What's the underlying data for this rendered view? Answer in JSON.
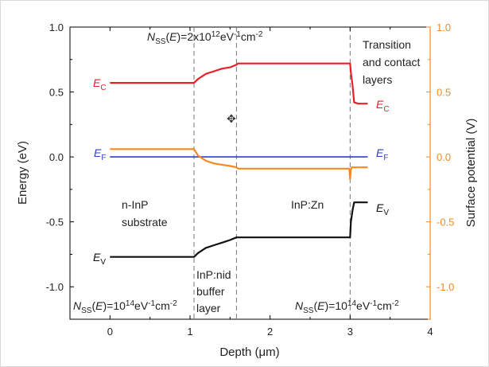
{
  "colors": {
    "conduction": "#e8202a",
    "fermi": "#2b3fd6",
    "valence": "#111111",
    "surface_potential": "#f7891f",
    "boundary": "#777777"
  },
  "chart_data": {
    "type": "line",
    "xlabel": "Depth (μm)",
    "ylabel_left": "Energy (eV)",
    "ylabel_right": "Surface potential (V)",
    "xlim": [
      -0.5,
      4.0
    ],
    "ylim_left": [
      -1.25,
      1.0
    ],
    "ylim_right": [
      -1.25,
      1.0
    ],
    "x_ticks": [
      "0",
      "1",
      "2",
      "3",
      "4"
    ],
    "y_left_ticks": [
      "1.0",
      "0.5",
      "0.0",
      "-0.5",
      "-1.0"
    ],
    "y_right_ticks": [
      "1.0",
      "0.5",
      "0.0",
      "-0.5",
      "-1.0"
    ],
    "boundaries": [
      1.05,
      1.58,
      3.0
    ],
    "grid": false,
    "series": [
      {
        "key": "Ec",
        "axis": "left",
        "x": [
          0,
          1.05,
          1.1,
          1.2,
          1.3,
          1.4,
          1.5,
          1.58,
          1.6,
          2.0,
          2.5,
          3.0,
          3.01,
          3.03,
          3.05,
          3.1,
          3.2,
          3.22
        ],
        "y": [
          0.57,
          0.57,
          0.6,
          0.64,
          0.66,
          0.68,
          0.69,
          0.71,
          0.72,
          0.72,
          0.72,
          0.72,
          0.65,
          0.55,
          0.42,
          0.41,
          0.41,
          0.41
        ]
      },
      {
        "key": "EF",
        "axis": "left",
        "x": [
          0,
          3.22
        ],
        "y": [
          0.0,
          0.0
        ]
      },
      {
        "key": "Ev",
        "axis": "left",
        "x": [
          0,
          1.05,
          1.1,
          1.2,
          1.3,
          1.4,
          1.5,
          1.58,
          1.6,
          2.0,
          2.5,
          3.0,
          3.01,
          3.03,
          3.05,
          3.1,
          3.2,
          3.22
        ],
        "y": [
          -0.77,
          -0.77,
          -0.74,
          -0.7,
          -0.68,
          -0.66,
          -0.64,
          -0.62,
          -0.62,
          -0.62,
          -0.62,
          -0.62,
          -0.5,
          -0.41,
          -0.35,
          -0.35,
          -0.35,
          -0.35
        ]
      },
      {
        "key": "surface_potential",
        "axis": "right",
        "x": [
          0,
          1.05,
          1.1,
          1.2,
          1.3,
          1.4,
          1.5,
          1.58,
          1.6,
          2.0,
          2.5,
          2.99,
          3.0,
          3.01,
          3.02,
          3.05,
          3.1,
          3.2,
          3.22
        ],
        "y": [
          0.06,
          0.06,
          0.01,
          -0.03,
          -0.05,
          -0.06,
          -0.07,
          -0.08,
          -0.09,
          -0.09,
          -0.09,
          -0.09,
          -0.17,
          -0.1,
          -0.08,
          -0.08,
          -0.08,
          -0.08,
          -0.08
        ]
      }
    ],
    "annotations": {
      "nss_top": "N_SS(E)=2x10^12 eV^-1cm^-2",
      "nss_left": "N_SS(E)=10^14 eV^-1cm^-2",
      "nss_right": "N_SS(E)=10^14 eV^-1cm^-2",
      "region_substrate": [
        "n-InP",
        "substrate"
      ],
      "region_buffer": [
        "InP:nid",
        "buffer",
        "layer"
      ],
      "region_znlayer": "InP:Zn",
      "region_contact": [
        "Transition",
        "and contact",
        "layers"
      ],
      "band_labels": {
        "Ec_left": "E_C",
        "Ec_right": "E_C",
        "EF_left": "E_F",
        "EF_right": "E_F",
        "Ev_left": "E_V",
        "Ev_right": "E_V"
      }
    }
  }
}
